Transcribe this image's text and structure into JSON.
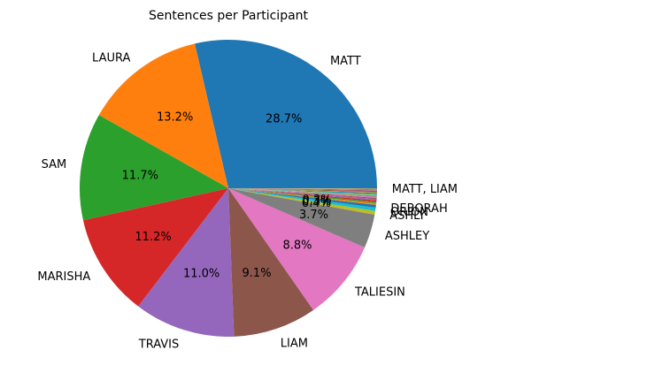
{
  "chart_data": {
    "type": "pie",
    "title": "Sentences per Participant",
    "start_angle_deg": 0,
    "direction": "counterclockwise",
    "slices": [
      {
        "label": "MATT",
        "value": 28.7,
        "pct_label": "28.7%",
        "color": "#1f77b4"
      },
      {
        "label": "LAURA",
        "value": 13.2,
        "pct_label": "13.2%",
        "color": "#ff7f0e"
      },
      {
        "label": "SAM",
        "value": 11.7,
        "pct_label": "11.7%",
        "color": "#2ca02c"
      },
      {
        "label": "MARISHA",
        "value": 11.2,
        "pct_label": "11.2%",
        "color": "#d62728"
      },
      {
        "label": "TRAVIS",
        "value": 11.0,
        "pct_label": "11.0%",
        "color": "#9467bd"
      },
      {
        "label": "LIAM",
        "value": 9.1,
        "pct_label": "9.1%",
        "color": "#8c564b"
      },
      {
        "label": "TALIESIN",
        "value": 8.8,
        "pct_label": "8.8%",
        "color": "#e377c2"
      },
      {
        "label": "ASHLEY",
        "value": 3.7,
        "pct_label": "3.7%",
        "color": "#7f7f7f"
      },
      {
        "label": "ASHLY",
        "value": 0.4,
        "pct_label": "0.4%",
        "color": "#bcbd22"
      },
      {
        "label": "ORION",
        "value": 0.35,
        "pct_label": "0.3%",
        "color": "#17becf"
      },
      {
        "label": "DEBORAH",
        "value": 0.3,
        "pct_label": "0.3%",
        "color": "#1f77b4"
      },
      {
        "label": "",
        "value": 0.2,
        "pct_label": "",
        "color": "#ff7f0e"
      },
      {
        "label": "",
        "value": 0.15,
        "pct_label": "",
        "color": "#2ca02c"
      },
      {
        "label": "",
        "value": 0.15,
        "pct_label": "",
        "color": "#d62728"
      },
      {
        "label": "",
        "value": 0.15,
        "pct_label": "",
        "color": "#9467bd"
      },
      {
        "label": "",
        "value": 0.12,
        "pct_label": "",
        "color": "#8c564b"
      },
      {
        "label": "",
        "value": 0.12,
        "pct_label": "",
        "color": "#e377c2"
      },
      {
        "label": "",
        "value": 0.1,
        "pct_label": "",
        "color": "#7f7f7f"
      },
      {
        "label": "",
        "value": 0.1,
        "pct_label": "",
        "color": "#bcbd22"
      },
      {
        "label": "",
        "value": 0.1,
        "pct_label": "",
        "color": "#17becf"
      },
      {
        "label": "",
        "value": 0.1,
        "pct_label": "",
        "color": "#1f77b4"
      },
      {
        "label": "",
        "value": 0.08,
        "pct_label": "",
        "color": "#ff7f0e"
      },
      {
        "label": "",
        "value": 0.08,
        "pct_label": "",
        "color": "#2ca02c"
      },
      {
        "label": "",
        "value": 0.08,
        "pct_label": "",
        "color": "#d62728"
      },
      {
        "label": "",
        "value": 0.06,
        "pct_label": "",
        "color": "#9467bd"
      },
      {
        "label": "",
        "value": 0.06,
        "pct_label": "",
        "color": "#8c564b"
      },
      {
        "label": "",
        "value": 0.05,
        "pct_label": "",
        "color": "#e377c2"
      },
      {
        "label": "",
        "value": 0.05,
        "pct_label": "",
        "color": "#7f7f7f"
      },
      {
        "label": "MATT, LIAM",
        "value": 0.05,
        "pct_label": "",
        "color": "#bcbd22"
      }
    ]
  }
}
